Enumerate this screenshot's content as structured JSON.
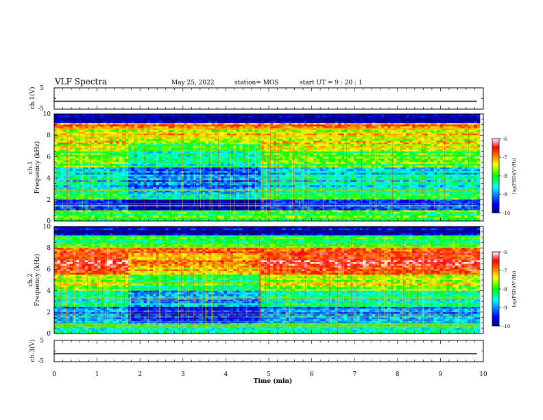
{
  "header": {
    "title": "VLF Spectra",
    "date": "May 25, 2022",
    "station": "station= MOS",
    "start": "start  UT =   9 : 20 : 1"
  },
  "chart_data": [
    {
      "type": "line",
      "name": "panel-ch1-voltage",
      "ylabel": "ch.1(V)",
      "ylim": [
        -5,
        5
      ],
      "ytick_labels": [
        "5",
        "-5"
      ],
      "xlim": [
        0,
        10
      ],
      "signal": {
        "x": [
          0,
          9.85
        ],
        "y": [
          0,
          0
        ]
      }
    },
    {
      "type": "heatmap",
      "name": "panel-ch1-spectrogram",
      "ylabel_top": "ch.1",
      "ylabel": "Frequency  (kHz)",
      "xlim": [
        0,
        10
      ],
      "ylim": [
        0,
        10
      ],
      "ytick_labels": [
        "0",
        "2",
        "4",
        "6",
        "8",
        "10"
      ],
      "data_xlim": [
        0,
        9.85
      ],
      "colorbar": {
        "label": "log(PSD)(V²/Hz)",
        "range": [
          -10,
          -6
        ],
        "tick_labels": [
          "-6",
          "-7",
          "-8",
          "-9",
          "-10"
        ]
      },
      "bands_khz": [
        {
          "f0": 9.2,
          "f1": 10,
          "level": -9.8
        },
        {
          "f0": 8.5,
          "f1": 9.2,
          "level": -6.8
        },
        {
          "f0": 6.5,
          "f1": 8.5,
          "level": -7.4
        },
        {
          "f0": 5.0,
          "f1": 6.5,
          "level": -7.9
        },
        {
          "f0": 3.0,
          "f1": 5.0,
          "level": -8.6
        },
        {
          "f0": 2.0,
          "f1": 3.0,
          "level": -8.2
        },
        {
          "f0": 1.0,
          "f1": 2.0,
          "level": -9.3
        },
        {
          "f0": 0.0,
          "f1": 1.0,
          "level": -8.0
        }
      ],
      "quiet_interval_min": [
        1.7,
        4.8
      ]
    },
    {
      "type": "heatmap",
      "name": "panel-ch2-spectrogram",
      "ylabel_top": "ch.2",
      "ylabel": "Frequency  (kHz)",
      "xlim": [
        0,
        10
      ],
      "ylim": [
        0,
        10
      ],
      "ytick_labels": [
        "0",
        "2",
        "4",
        "6",
        "8",
        "10"
      ],
      "data_xlim": [
        0,
        9.85
      ],
      "colorbar": {
        "label": "log(PSD)(V²/Hz)",
        "range": [
          -10,
          -6
        ],
        "tick_labels": [
          "-6",
          "-7",
          "-8",
          "-9",
          "-10"
        ]
      },
      "bands_khz": [
        {
          "f0": 9.2,
          "f1": 10,
          "level": -9.8
        },
        {
          "f0": 8.0,
          "f1": 9.2,
          "level": -8.0
        },
        {
          "f0": 5.5,
          "f1": 8.0,
          "level": -6.6
        },
        {
          "f0": 4.0,
          "f1": 5.5,
          "level": -7.5
        },
        {
          "f0": 2.5,
          "f1": 4.0,
          "level": -8.3
        },
        {
          "f0": 1.0,
          "f1": 2.5,
          "level": -9.1
        },
        {
          "f0": 0.0,
          "f1": 1.0,
          "level": -8.4
        }
      ],
      "quiet_interval_min": [
        1.7,
        4.8
      ]
    },
    {
      "type": "line",
      "name": "panel-ch3-voltage",
      "ylabel": "ch.3(V)",
      "ylim": [
        -5,
        5
      ],
      "ytick_labels": [
        "5",
        "-5"
      ],
      "xlim": [
        0,
        10
      ],
      "xlabel": "Time  (min)",
      "xtick_labels": [
        "0",
        "1",
        "2",
        "3",
        "4",
        "5",
        "6",
        "7",
        "8",
        "9",
        "10"
      ],
      "signal": {
        "x": [
          0,
          9.85
        ],
        "y": [
          0,
          0
        ]
      }
    }
  ]
}
